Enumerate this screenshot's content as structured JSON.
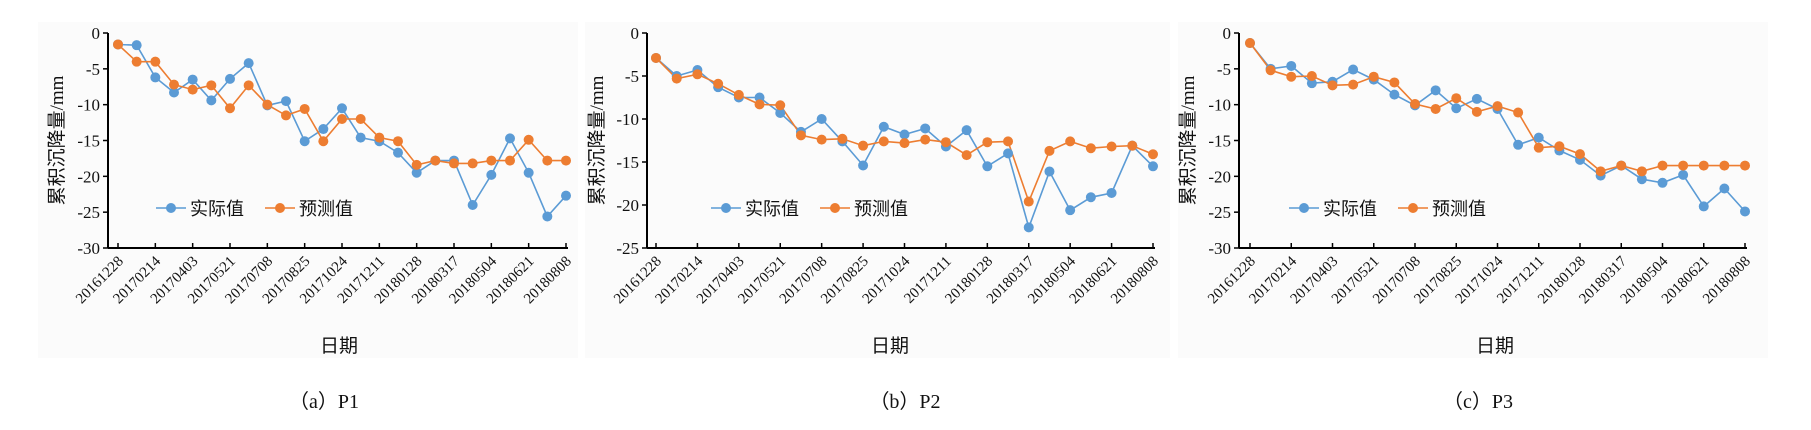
{
  "colors": {
    "actual": "#5b9bd5",
    "predicted": "#ed7d31"
  },
  "chart_data": [
    {
      "type": "line",
      "caption": "（a）P1",
      "xlabel": "日期",
      "ylabel": "累积沉降量/mm",
      "ylim": [
        -30,
        0
      ],
      "yticks": [
        "0",
        "-5",
        "-10",
        "-15",
        "-20",
        "-25",
        "-30"
      ],
      "ytick_values": [
        0,
        -5,
        -10,
        -15,
        -20,
        -25,
        -30
      ],
      "xtick_labels": [
        "20161228",
        "20170214",
        "20170403",
        "20170521",
        "20170708",
        "20170825",
        "20171024",
        "20171211",
        "20180128",
        "20180317",
        "20180504",
        "20180621",
        "20180808"
      ],
      "legend": [
        "实际值",
        "预测值"
      ],
      "legend_position": "lower-left",
      "series": [
        {
          "name": "实际值",
          "values": [
            -1.6,
            -1.7,
            -6.2,
            -8.3,
            -6.5,
            -9.4,
            -6.4,
            -4.2,
            -10.1,
            -9.5,
            -15.1,
            -13.4,
            -10.5,
            -14.6,
            -15.1,
            -16.7,
            -19.5,
            -17.8,
            -17.8,
            -24.0,
            -19.8,
            -14.7,
            -19.5,
            -25.6,
            -22.7
          ]
        },
        {
          "name": "预测值",
          "values": [
            -1.6,
            -4.0,
            -4.0,
            -7.2,
            -7.9,
            -7.3,
            -10.5,
            -7.3,
            -10.0,
            -11.5,
            -10.6,
            -15.1,
            -12.0,
            -12.0,
            -14.6,
            -15.1,
            -18.4,
            -17.8,
            -18.2,
            -18.2,
            -17.8,
            -17.8,
            -14.9,
            -17.8,
            -17.8
          ]
        }
      ]
    },
    {
      "type": "line",
      "caption": "（b）P2",
      "xlabel": "日期",
      "ylabel": "累积沉降量/mm",
      "ylim": [
        -25,
        0
      ],
      "yticks": [
        "0",
        "-5",
        "-10",
        "-15",
        "-20",
        "-25"
      ],
      "ytick_values": [
        0,
        -5,
        -10,
        -15,
        -20,
        -25
      ],
      "xtick_labels": [
        "20161228",
        "20170214",
        "20170403",
        "20170521",
        "20170708",
        "20170825",
        "20171024",
        "20171211",
        "20180128",
        "20180317",
        "20180504",
        "20180621",
        "20180808"
      ],
      "legend": [
        "实际值",
        "预测值"
      ],
      "legend_position": "lower-left",
      "series": [
        {
          "name": "实际值",
          "values": [
            -2.9,
            -5.0,
            -4.3,
            -6.3,
            -7.5,
            -7.5,
            -9.3,
            -11.5,
            -10.0,
            -12.6,
            -15.4,
            -10.9,
            -11.8,
            -11.1,
            -13.2,
            -11.3,
            -15.5,
            -14.0,
            -22.6,
            -16.1,
            -20.6,
            -19.1,
            -18.6,
            -13.1,
            -15.5
          ]
        },
        {
          "name": "预测值",
          "values": [
            -2.9,
            -5.3,
            -4.8,
            -5.9,
            -7.2,
            -8.3,
            -8.4,
            -11.9,
            -12.4,
            -12.3,
            -13.1,
            -12.6,
            -12.8,
            -12.4,
            -12.7,
            -14.2,
            -12.7,
            -12.6,
            -19.6,
            -13.7,
            -12.6,
            -13.4,
            -13.2,
            -13.1,
            -14.1
          ]
        }
      ]
    },
    {
      "type": "line",
      "caption": "（c）P3",
      "xlabel": "日期",
      "ylabel": "累积沉降量/mm",
      "ylim": [
        -30,
        0
      ],
      "yticks": [
        "0",
        "-5",
        "-10",
        "-15",
        "-20",
        "-25",
        "-30"
      ],
      "ytick_values": [
        0,
        -5,
        -10,
        -15,
        -20,
        -25,
        -30
      ],
      "xtick_labels": [
        "20161228",
        "20170214",
        "20170403",
        "20170521",
        "20170708",
        "20170825",
        "20171024",
        "20171211",
        "20180128",
        "20180317",
        "20180504",
        "20180621",
        "20180808"
      ],
      "legend": [
        "实际值",
        "预测值"
      ],
      "legend_position": "lower-left",
      "series": [
        {
          "name": "实际值",
          "values": [
            -1.4,
            -5.0,
            -4.6,
            -7.0,
            -6.8,
            -5.1,
            -6.5,
            -8.6,
            -10.1,
            -8.0,
            -10.5,
            -9.2,
            -10.6,
            -15.6,
            -14.6,
            -16.4,
            -17.7,
            -19.9,
            -18.5,
            -20.4,
            -20.9,
            -19.8,
            -24.2,
            -21.7,
            -24.9
          ]
        },
        {
          "name": "预测值",
          "values": [
            -1.4,
            -5.2,
            -6.1,
            -6.0,
            -7.3,
            -7.2,
            -6.1,
            -6.9,
            -9.9,
            -10.6,
            -9.1,
            -11.0,
            -10.2,
            -11.1,
            -16.0,
            -15.8,
            -16.9,
            -19.3,
            -18.5,
            -19.3,
            -18.5,
            -18.5,
            -18.5,
            -18.5,
            -18.5
          ]
        }
      ]
    }
  ]
}
